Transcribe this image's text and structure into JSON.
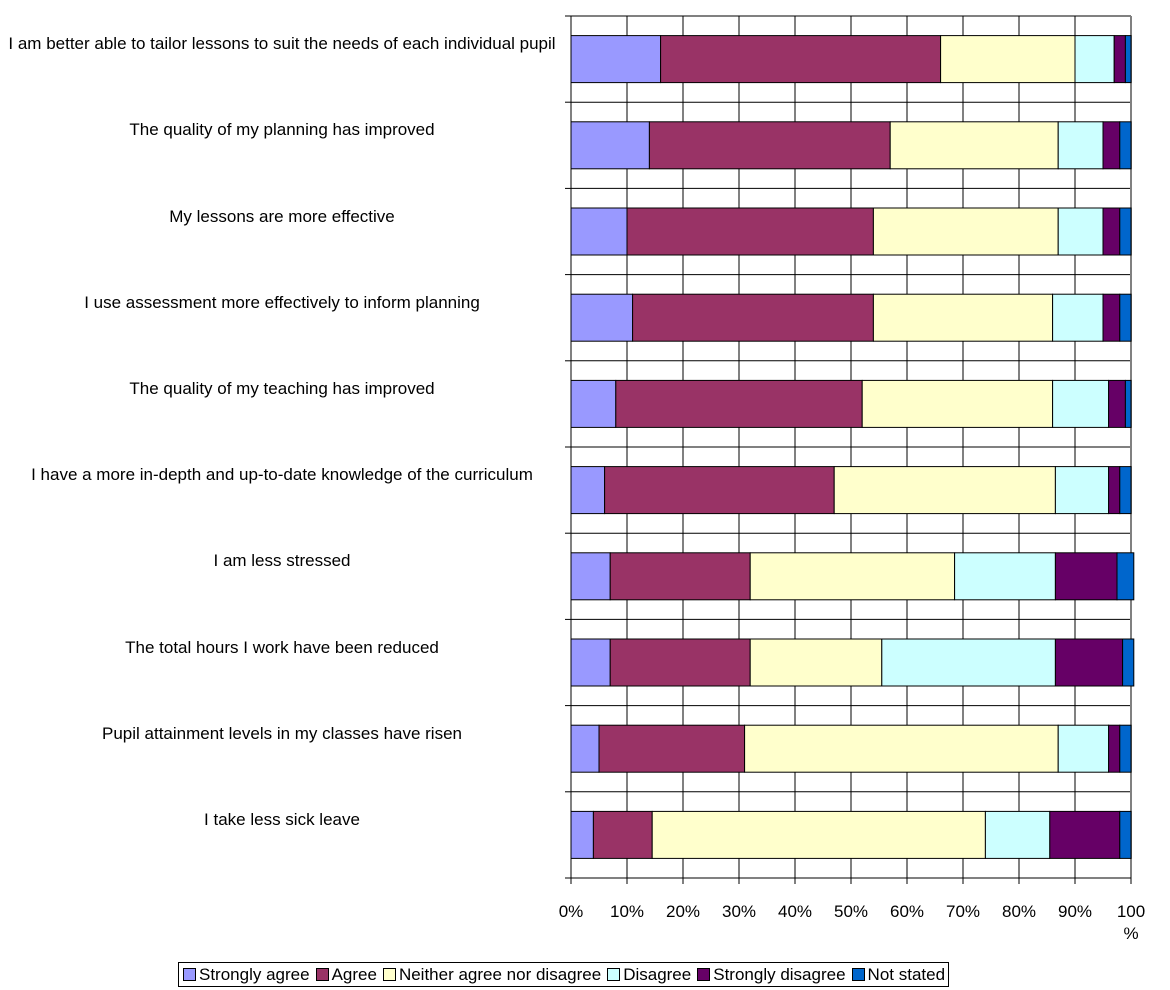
{
  "chart_data": {
    "type": "bar",
    "orientation": "horizontal",
    "stacked": true,
    "percent_axis": true,
    "xlim": [
      0,
      100
    ],
    "grid": true,
    "legend_position": "bottom",
    "x_ticks": [
      "0%",
      "10%",
      "20%",
      "30%",
      "40%",
      "50%",
      "60%",
      "70%",
      "80%",
      "90%",
      "100\n%"
    ],
    "categories": [
      "I am better able to tailor lessons to suit the needs of each individual pupil",
      "The quality of my planning has improved",
      "My lessons are more effective",
      "I use assessment more effectively to inform planning",
      "The quality of my teaching has improved",
      "I have a more in-depth and up-to-date knowledge of the curriculum",
      "I am less stressed",
      "The total hours I work have been reduced",
      "Pupil attainment levels in my classes have risen",
      "I take less sick leave"
    ],
    "series": [
      {
        "name": "Strongly agree",
        "color": "#9999ff",
        "values": [
          16,
          14,
          10,
          11,
          8,
          6,
          7,
          7,
          5,
          4
        ]
      },
      {
        "name": "Agree",
        "color": "#993366",
        "values": [
          50,
          43,
          44,
          43,
          44,
          41,
          25,
          25,
          26,
          10.5
        ]
      },
      {
        "name": "Neither agree nor disagree",
        "color": "#ffffcc",
        "values": [
          24,
          30,
          33,
          32,
          34,
          39.5,
          36.5,
          23.5,
          56,
          59.5
        ]
      },
      {
        "name": "Disagree",
        "color": "#ccffff",
        "values": [
          7,
          8,
          8,
          9,
          10,
          9.5,
          18,
          31,
          9,
          11.5
        ]
      },
      {
        "name": "Strongly disagree",
        "color": "#660066",
        "values": [
          2,
          3,
          3,
          3,
          3,
          2,
          11,
          12,
          2,
          12.5
        ]
      },
      {
        "name": "Not stated",
        "color": "#0066cc",
        "values": [
          1,
          2,
          2,
          2,
          1,
          2,
          3,
          2,
          2,
          2
        ]
      }
    ]
  }
}
